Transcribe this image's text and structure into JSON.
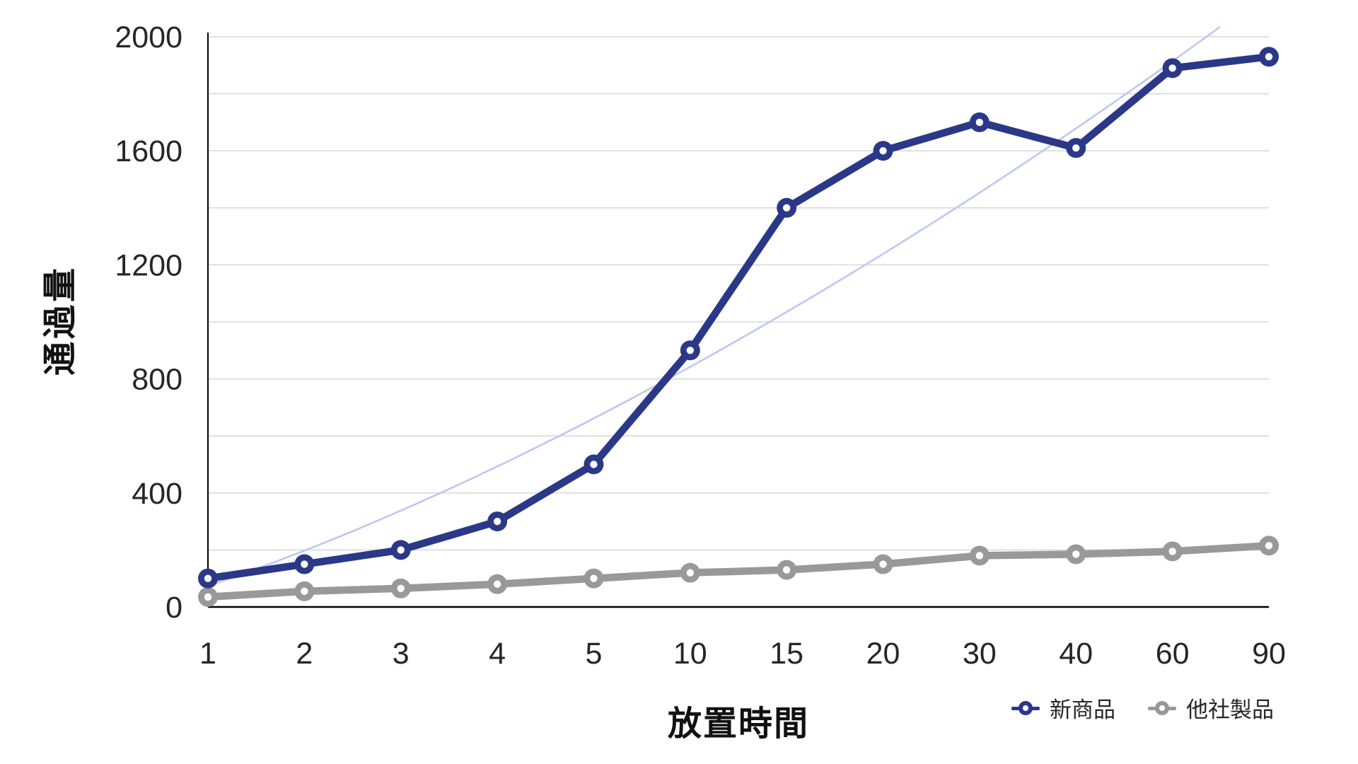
{
  "chart_data": {
    "type": "line",
    "title": "",
    "xlabel": "放置時間",
    "ylabel": "通過量",
    "categories": [
      "1",
      "2",
      "3",
      "4",
      "5",
      "10",
      "15",
      "20",
      "30",
      "40",
      "60",
      "90"
    ],
    "series": [
      {
        "name": "新商品",
        "color": "#2B3888",
        "marker": "ring-circle",
        "values": [
          100,
          150,
          200,
          300,
          500,
          900,
          1400,
          1600,
          1700,
          1610,
          1890,
          1930
        ]
      },
      {
        "name": "他社製品",
        "color": "#999999",
        "marker": "ring-circle",
        "values": [
          35,
          55,
          65,
          80,
          100,
          120,
          130,
          150,
          180,
          185,
          195,
          215
        ]
      }
    ],
    "trendline": {
      "for_series": "新商品",
      "shape": "smooth curve rising left-to-right, exits top of plot between x=60 and x=90",
      "color": "#bcc8f2"
    },
    "ylim": [
      0,
      2000
    ],
    "y_gridline_interval": 200,
    "y_label_interval": 400,
    "y_tick_labels": [
      "0",
      "400",
      "800",
      "1200",
      "1600",
      "2000"
    ],
    "grid": true,
    "legend_position": "bottom-right",
    "colors": {
      "gridline": "#d9d9d9",
      "axis_line": "#000000",
      "tick_text": "#262626"
    }
  },
  "legend": {
    "items": [
      {
        "label": "新商品",
        "color": "#2B3888"
      },
      {
        "label": "他社製品",
        "color": "#999999"
      }
    ]
  },
  "axes": {
    "x_title": "放置時間",
    "y_title": "通過量"
  }
}
